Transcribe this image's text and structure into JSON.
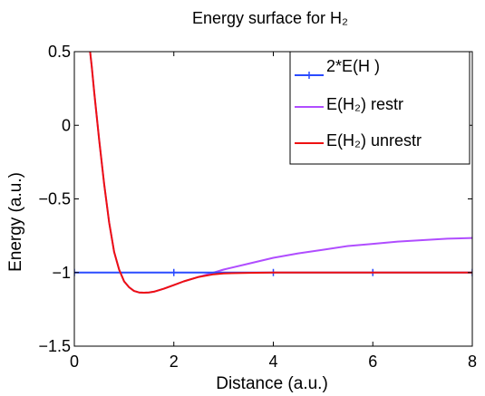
{
  "chart_data": {
    "type": "line",
    "title": "Energy surface for H₂",
    "xlabel": "Distance (a.u.)",
    "ylabel": "Energy (a.u.)",
    "xlim": [
      0,
      8
    ],
    "ylim": [
      -1.5,
      0.5
    ],
    "x_ticks": [
      "0",
      "2",
      "4",
      "6",
      "8"
    ],
    "y_ticks": [
      "−1.5",
      "−1",
      "−0.5",
      "0",
      "0.5"
    ],
    "grid": false,
    "legend_position": "top-right",
    "series": [
      {
        "name": "2*E(H )",
        "color": "#2a4bff",
        "marker": "plus",
        "x": [
          0,
          2,
          4,
          6,
          8
        ],
        "y": [
          -1.0,
          -1.0,
          -1.0,
          -1.0,
          -1.0
        ]
      },
      {
        "name": "E(H₂) restr",
        "color": "#b04dff",
        "x": [
          0.3,
          0.35,
          0.4,
          0.5,
          0.6,
          0.7,
          0.8,
          0.9,
          1.0,
          1.1,
          1.2,
          1.3,
          1.4,
          1.5,
          1.6,
          1.8,
          2.0,
          2.2,
          2.5,
          2.8,
          3.0,
          3.5,
          4.0,
          4.5,
          5.0,
          5.5,
          6.0,
          6.5,
          7.0,
          7.5,
          8.0
        ],
        "y": [
          0.55,
          0.4,
          0.22,
          -0.1,
          -0.4,
          -0.66,
          -0.86,
          -0.98,
          -1.06,
          -1.1,
          -1.125,
          -1.135,
          -1.137,
          -1.135,
          -1.13,
          -1.11,
          -1.085,
          -1.06,
          -1.03,
          -1.0,
          -0.98,
          -0.94,
          -0.9,
          -0.87,
          -0.845,
          -0.82,
          -0.805,
          -0.79,
          -0.78,
          -0.77,
          -0.765
        ]
      },
      {
        "name": "E(H₂) unrestr",
        "color": "#ee1111",
        "x": [
          0.3,
          0.35,
          0.4,
          0.5,
          0.6,
          0.7,
          0.8,
          0.9,
          1.0,
          1.1,
          1.2,
          1.3,
          1.4,
          1.5,
          1.6,
          1.8,
          2.0,
          2.2,
          2.5,
          2.8,
          3.0,
          3.5,
          4.0,
          4.5,
          5.0,
          6.0,
          7.0,
          8.0
        ],
        "y": [
          0.55,
          0.4,
          0.22,
          -0.1,
          -0.4,
          -0.66,
          -0.86,
          -0.98,
          -1.06,
          -1.1,
          -1.125,
          -1.135,
          -1.137,
          -1.135,
          -1.13,
          -1.11,
          -1.085,
          -1.06,
          -1.03,
          -1.012,
          -1.006,
          -1.002,
          -1.0,
          -1.0,
          -1.0,
          -1.0,
          -1.0,
          -1.0
        ]
      }
    ]
  }
}
